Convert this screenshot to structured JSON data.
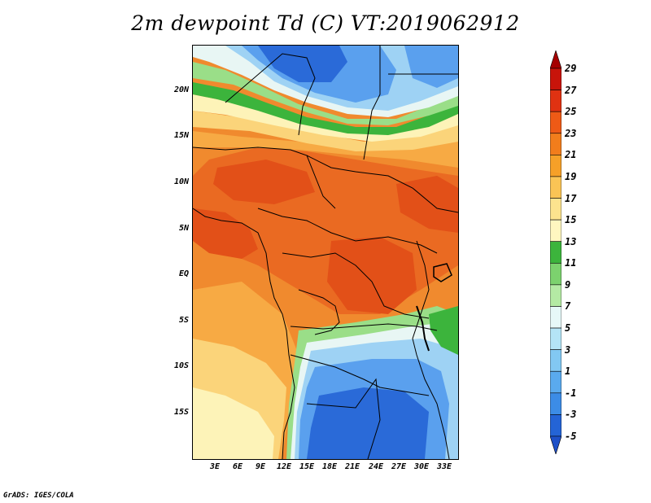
{
  "title": "2m dewpoint Td (C) VT:2019062912",
  "footer": "GrADS: IGES/COLA",
  "lat_labels": [
    "20N",
    "15N",
    "10N",
    "5N",
    "EQ",
    "5S",
    "10S",
    "15S"
  ],
  "lon_labels": [
    "3E",
    "6E",
    "9E",
    "12E",
    "15E",
    "18E",
    "21E",
    "24E",
    "27E",
    "30E",
    "33E"
  ],
  "colorbar": {
    "labels": [
      "29",
      "27",
      "25",
      "23",
      "21",
      "19",
      "17",
      "15",
      "13",
      "11",
      "9",
      "7",
      "5",
      "3",
      "1",
      "-1",
      "-3",
      "-5"
    ],
    "colors": [
      "#a50000",
      "#c8140a",
      "#e03212",
      "#ee5a16",
      "#f27d1c",
      "#f6a028",
      "#fac455",
      "#fce38e",
      "#fff7c0",
      "#3cb43c",
      "#7cd26e",
      "#b4eaa4",
      "#e6f8f8",
      "#b4e4f6",
      "#82c8f2",
      "#5aaaee",
      "#3c8ce6",
      "#2464d6",
      "#1e50c8"
    ]
  },
  "field_colors": {
    "deep_blue": "#2a6ad8",
    "blue": "#5aa0ee",
    "light_blue": "#9ed2f4",
    "pale": "#e8f6f4",
    "green": "#3cb43c",
    "light_green": "#9ade88",
    "cream": "#fdf3b8",
    "yellow": "#fbd47a",
    "light_orange": "#f7aa44",
    "orange": "#f08a2e",
    "dark_orange": "#ea6a22",
    "red_orange": "#e25018"
  }
}
